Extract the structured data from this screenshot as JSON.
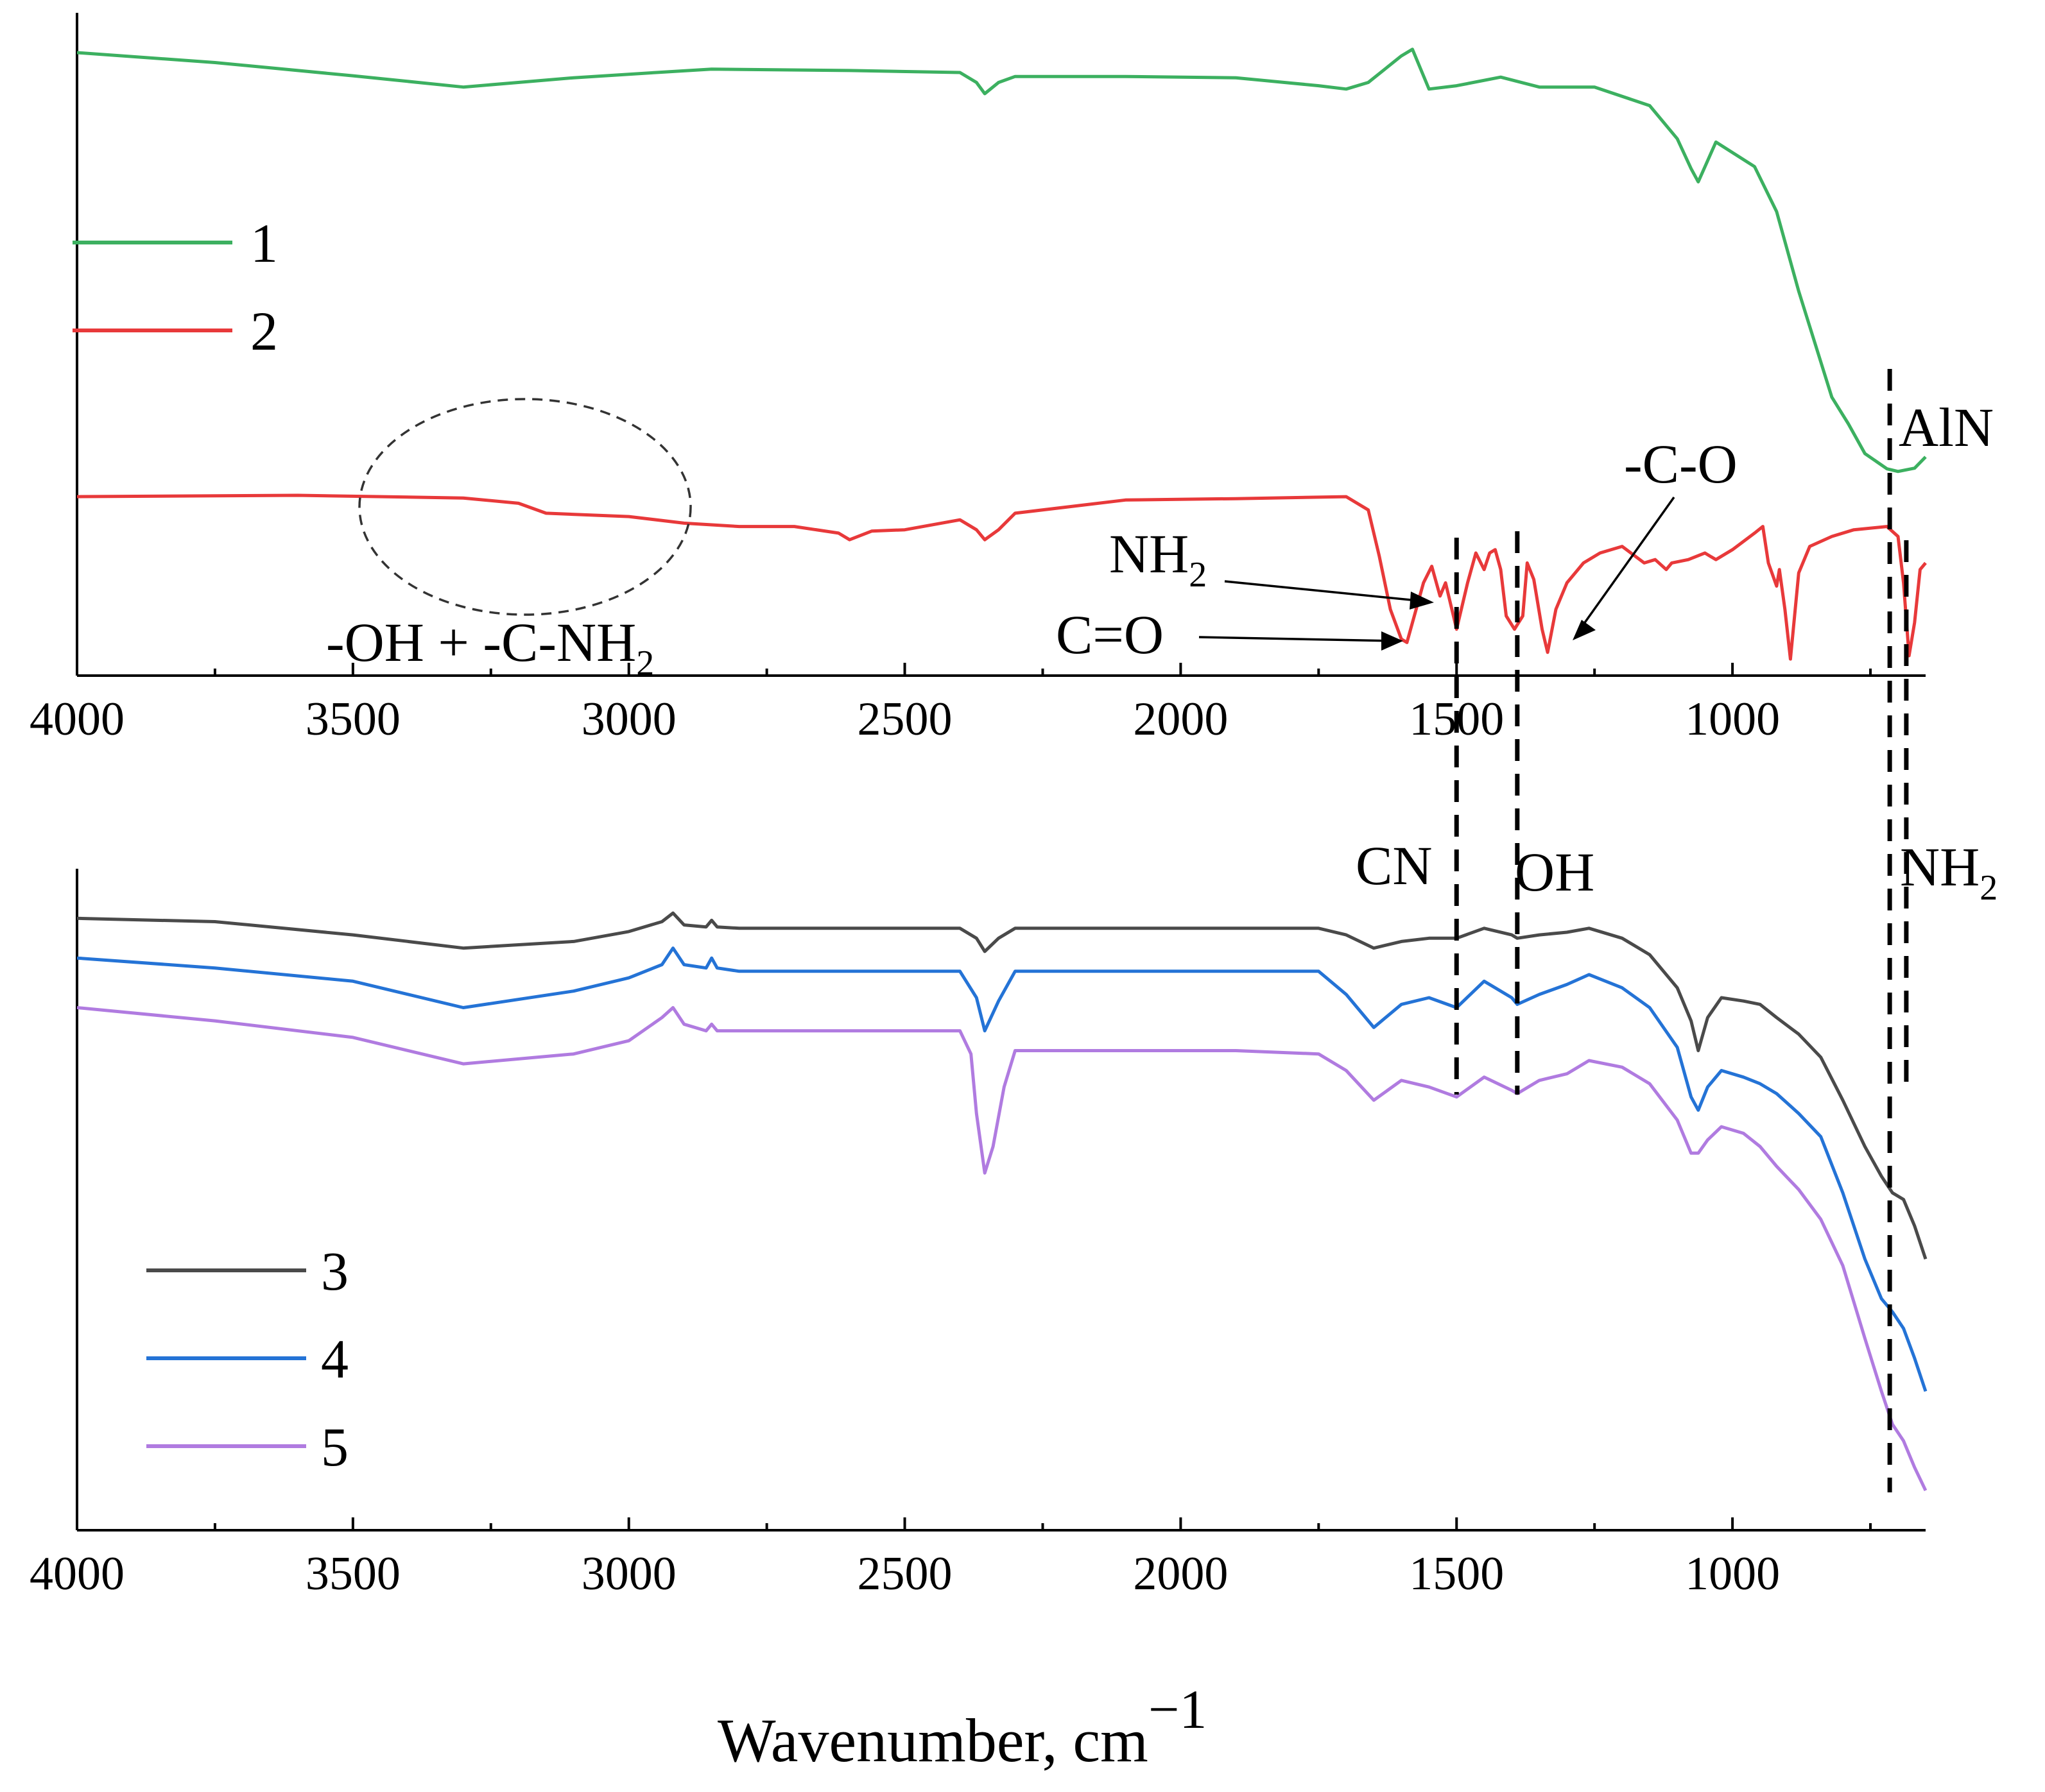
{
  "figure": {
    "xlabel_main": "Wavenumber, cm",
    "xlabel_sup": "−1"
  },
  "chart_data": [
    {
      "type": "line",
      "panel": "top",
      "xlim": [
        4000,
        650
      ],
      "x_ticks": [
        4000,
        3500,
        3000,
        2500,
        2000,
        1500,
        1000
      ],
      "x_tick_labels": [
        "4000",
        "3500",
        "3000",
        "2500",
        "2000",
        "1500",
        "1000"
      ],
      "y_axis": "arbitrary units, no ticks",
      "ylim": [
        0,
        100
      ],
      "legend_placement": "left",
      "series": [
        {
          "name": "1",
          "color": "#3cb060",
          "x": [
            4000,
            3750,
            3500,
            3300,
            3100,
            2950,
            2850,
            2600,
            2400,
            2370,
            2355,
            2330,
            2300,
            2100,
            1900,
            1750,
            1700,
            1660,
            1600,
            1580,
            1550,
            1500,
            1420,
            1350,
            1250,
            1150,
            1100,
            1075,
            1062,
            1030,
            960,
            920,
            880,
            850,
            820,
            790,
            760,
            720,
            700,
            670,
            650
          ],
          "y": [
            94,
            92.5,
            90.5,
            88.8,
            90.2,
            91,
            91.5,
            91.3,
            91,
            89.5,
            87.8,
            89.5,
            90.4,
            90.4,
            90.2,
            89,
            88.5,
            89.5,
            93.5,
            94.5,
            88.5,
            89,
            90.3,
            88.8,
            88.8,
            86,
            81,
            76.5,
            74.5,
            80.5,
            76.8,
            70,
            58,
            50,
            42,
            38,
            33.5,
            31.2,
            30.8,
            31.3,
            33
          ]
        },
        {
          "name": "2",
          "color": "#e8393a",
          "x": [
            4000,
            3600,
            3300,
            3200,
            3150,
            3000,
            2900,
            2800,
            2700,
            2620,
            2600,
            2560,
            2500,
            2400,
            2370,
            2355,
            2330,
            2300,
            2100,
            1900,
            1700,
            1660,
            1640,
            1620,
            1600,
            1590,
            1560,
            1545,
            1530,
            1520,
            1500,
            1480,
            1465,
            1450,
            1440,
            1430,
            1420,
            1410,
            1395,
            1380,
            1372,
            1360,
            1345,
            1335,
            1320,
            1300,
            1270,
            1240,
            1200,
            1160,
            1140,
            1120,
            1110,
            1080,
            1050,
            1040,
            1030,
            1000,
            960,
            945,
            935,
            920,
            915,
            905,
            895,
            880,
            860,
            820,
            780,
            720,
            700,
            690,
            680,
            670,
            660,
            650
          ],
          "y": [
            27,
            27.2,
            26.8,
            26,
            24.5,
            24,
            23,
            22.5,
            22.5,
            21.5,
            20.5,
            21.8,
            22,
            23.5,
            22,
            20.5,
            22,
            24.5,
            26.5,
            26.7,
            27,
            25,
            18,
            10,
            5.5,
            5,
            14,
            16.5,
            12,
            14,
            7,
            14,
            18.5,
            16,
            18.5,
            19,
            16,
            9,
            7,
            9,
            17,
            14.5,
            7,
            3.5,
            10,
            14,
            17,
            18.5,
            19.5,
            17,
            17.5,
            16,
            17,
            17.5,
            18.5,
            18,
            17.5,
            19,
            21.5,
            22.5,
            17,
            13.5,
            16,
            10,
            2.5,
            15.5,
            19.5,
            21,
            22,
            22.5,
            21,
            14,
            3,
            8,
            16,
            17
          ]
        }
      ],
      "annotations": [
        {
          "text": "-OH + -C-NH",
          "sub": "2"
        },
        {
          "text": "NH",
          "sub": "2"
        },
        {
          "text": "C=O",
          "sub": ""
        },
        {
          "text": "-C-O",
          "sub": ""
        },
        {
          "text": "AlN",
          "sub": ""
        },
        {
          "text": "CN",
          "sub": ""
        },
        {
          "text": "OH",
          "sub": ""
        },
        {
          "text": "NH",
          "sub": "2"
        }
      ],
      "reference_lines_cm1": [
        1500,
        1390,
        715,
        685
      ]
    },
    {
      "type": "line",
      "panel": "bottom",
      "xlim": [
        4000,
        650
      ],
      "x_ticks": [
        4000,
        3500,
        3000,
        2500,
        2000,
        1500,
        1000
      ],
      "x_tick_labels": [
        "4000",
        "3500",
        "3000",
        "2500",
        "2000",
        "1500",
        "1000"
      ],
      "y_axis": "arbitrary units, no ticks",
      "ylim": [
        0,
        100
      ],
      "legend_placement": "bottom-left",
      "series": [
        {
          "name": "3",
          "color": "#4a4a4a",
          "x": [
            4000,
            3750,
            3500,
            3300,
            3100,
            3000,
            2940,
            2920,
            2900,
            2860,
            2850,
            2840,
            2800,
            2600,
            2400,
            2370,
            2355,
            2330,
            2300,
            2100,
            1900,
            1750,
            1700,
            1650,
            1600,
            1550,
            1500,
            1450,
            1400,
            1390,
            1350,
            1300,
            1260,
            1200,
            1150,
            1100,
            1075,
            1062,
            1045,
            1020,
            980,
            950,
            920,
            880,
            840,
            800,
            760,
            730,
            710,
            690,
            670,
            650
          ],
          "y": [
            92.5,
            92,
            90,
            88,
            89,
            90.5,
            92,
            93.3,
            91.5,
            91.2,
            92.2,
            91.2,
            91,
            91,
            91,
            89.5,
            87.5,
            89.5,
            91,
            91,
            91,
            91,
            90,
            88,
            89,
            89.5,
            89.5,
            91,
            90,
            89.5,
            90,
            90.4,
            91,
            89.5,
            87,
            82,
            77,
            72.5,
            77.5,
            80.5,
            80,
            79.5,
            77.5,
            75,
            71.5,
            65,
            58,
            53.5,
            51,
            50,
            46,
            41
          ]
        },
        {
          "name": "4",
          "color": "#2473d6",
          "x": [
            4000,
            3750,
            3500,
            3300,
            3100,
            3000,
            2940,
            2920,
            2900,
            2860,
            2850,
            2840,
            2800,
            2600,
            2400,
            2370,
            2355,
            2330,
            2300,
            2100,
            1900,
            1750,
            1700,
            1650,
            1600,
            1550,
            1500,
            1450,
            1400,
            1390,
            1350,
            1300,
            1260,
            1200,
            1150,
            1100,
            1075,
            1062,
            1045,
            1020,
            980,
            950,
            920,
            880,
            840,
            800,
            760,
            730,
            710,
            690,
            670,
            650
          ],
          "y": [
            86.5,
            85,
            83,
            79,
            81.5,
            83.5,
            85.5,
            88,
            85.5,
            85,
            86.5,
            85,
            84.5,
            84.5,
            84.5,
            80.5,
            75.5,
            80,
            84.5,
            84.5,
            84.5,
            84.5,
            81,
            76,
            79.5,
            80.5,
            79,
            83,
            80.5,
            79.5,
            81,
            82.5,
            84,
            82,
            79,
            73,
            65.5,
            63.5,
            67,
            69.5,
            68.5,
            67.5,
            66,
            63,
            59.5,
            51,
            41,
            35,
            33,
            30.5,
            26,
            21
          ]
        },
        {
          "name": "5",
          "color": "#b07be0",
          "x": [
            4000,
            3750,
            3500,
            3300,
            3100,
            3000,
            2940,
            2920,
            2900,
            2860,
            2850,
            2840,
            2800,
            2600,
            2400,
            2380,
            2370,
            2355,
            2340,
            2320,
            2300,
            2100,
            1900,
            1750,
            1700,
            1650,
            1600,
            1550,
            1500,
            1450,
            1400,
            1390,
            1350,
            1300,
            1260,
            1200,
            1150,
            1100,
            1075,
            1062,
            1045,
            1020,
            980,
            950,
            920,
            880,
            840,
            800,
            760,
            730,
            710,
            690,
            670,
            650
          ],
          "y": [
            79,
            77,
            74.5,
            70.5,
            72,
            74,
            77.5,
            79,
            76.5,
            75.5,
            76.5,
            75.5,
            75.5,
            75.5,
            75.5,
            72,
            63,
            54,
            58,
            67,
            72.5,
            72.5,
            72.5,
            72,
            69.5,
            65,
            68,
            67,
            65.5,
            68.5,
            66.5,
            66,
            68,
            69,
            71,
            70,
            67.5,
            62,
            57,
            57,
            59,
            61,
            60,
            58,
            55,
            51.5,
            47,
            40,
            29,
            21,
            16,
            13.5,
            9.5,
            6
          ]
        }
      ]
    }
  ]
}
